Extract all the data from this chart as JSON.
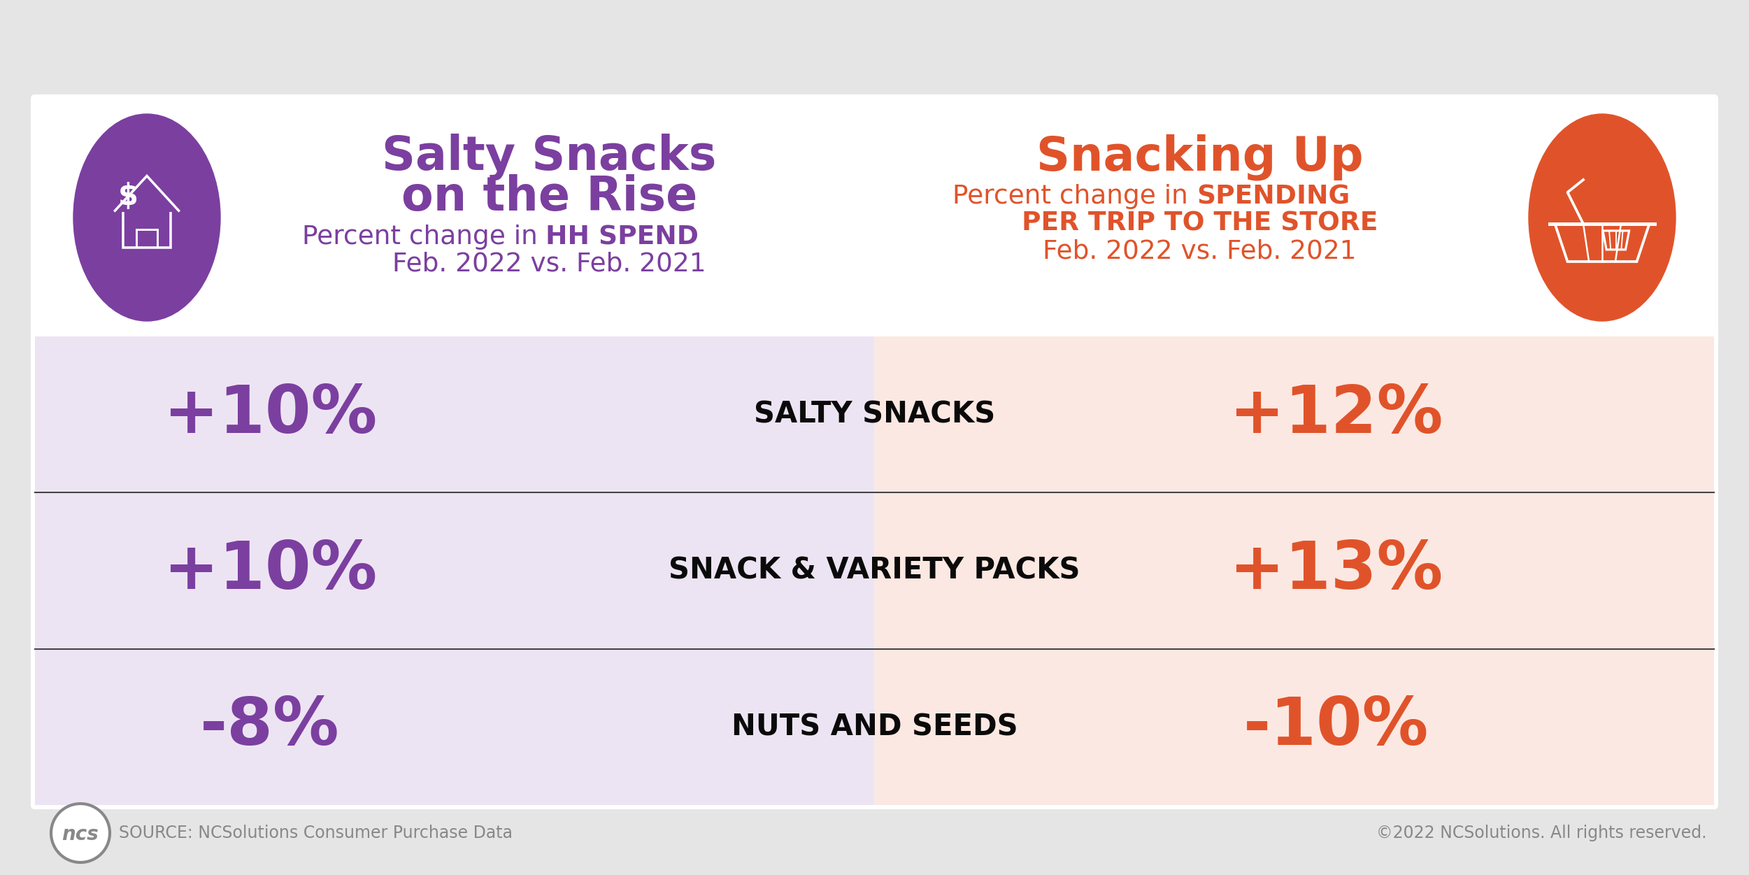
{
  "bg_color": "#e5e5e5",
  "card_bg": "#ffffff",
  "left_panel_bg": "#ede4f3",
  "right_panel_bg": "#fce8e2",
  "left_color": "#7b3fa0",
  "right_color": "#e0532a",
  "black_color": "#0a0a0a",
  "divider_color": "#444444",
  "ncs_gray": "#888888",
  "rows": [
    {
      "label": "SALTY SNACKS",
      "left_val": "+10%",
      "right_val": "+12%"
    },
    {
      "label": "SNACK & VARIETY PACKS",
      "left_val": "+10%",
      "right_val": "+13%"
    },
    {
      "label": "NUTS AND SEEDS",
      "left_val": "-8%",
      "right_val": "-10%"
    }
  ],
  "source_text": "SOURCE: NCSolutions Consumer Purchase Data",
  "copyright_text": "©2022 NCSolutions. All rights reserved."
}
